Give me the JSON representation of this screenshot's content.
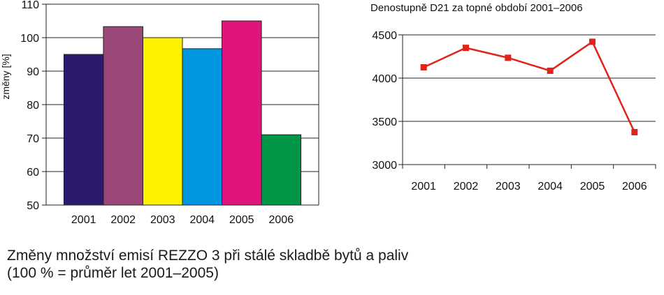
{
  "chart_data": [
    {
      "type": "bar",
      "title": "",
      "xlabel": "",
      "ylabel": "změny [%]",
      "ylim": [
        50,
        110
      ],
      "yticks": [
        50,
        60,
        70,
        80,
        90,
        100,
        110
      ],
      "grid": true,
      "legend": "none",
      "categories": [
        "2001",
        "2002",
        "2003",
        "2004",
        "2005",
        "2006"
      ],
      "values": [
        95,
        103.3,
        100,
        96.7,
        105,
        71
      ],
      "colors": [
        "#2b1a6e",
        "#9b4878",
        "#fff200",
        "#0096e0",
        "#e0157c",
        "#009645"
      ]
    },
    {
      "type": "line",
      "title": "Denostupně D21 za topné období 2001–2006",
      "xlabel": "",
      "ylabel": "",
      "ylim": [
        3000,
        4500
      ],
      "yticks": [
        3000,
        3500,
        4000,
        4500
      ],
      "grid": true,
      "legend": "none",
      "categories": [
        "2001",
        "2002",
        "2003",
        "2004",
        "2005",
        "2006"
      ],
      "values": [
        4125,
        4350,
        4235,
        4085,
        4420,
        3375
      ],
      "color": "#e0241b"
    }
  ],
  "caption": {
    "line1": "Změny množství emisí REZZO 3 při stálé skladbě bytů a paliv",
    "line2": "(100 % = průměr let 2001–2005)"
  }
}
